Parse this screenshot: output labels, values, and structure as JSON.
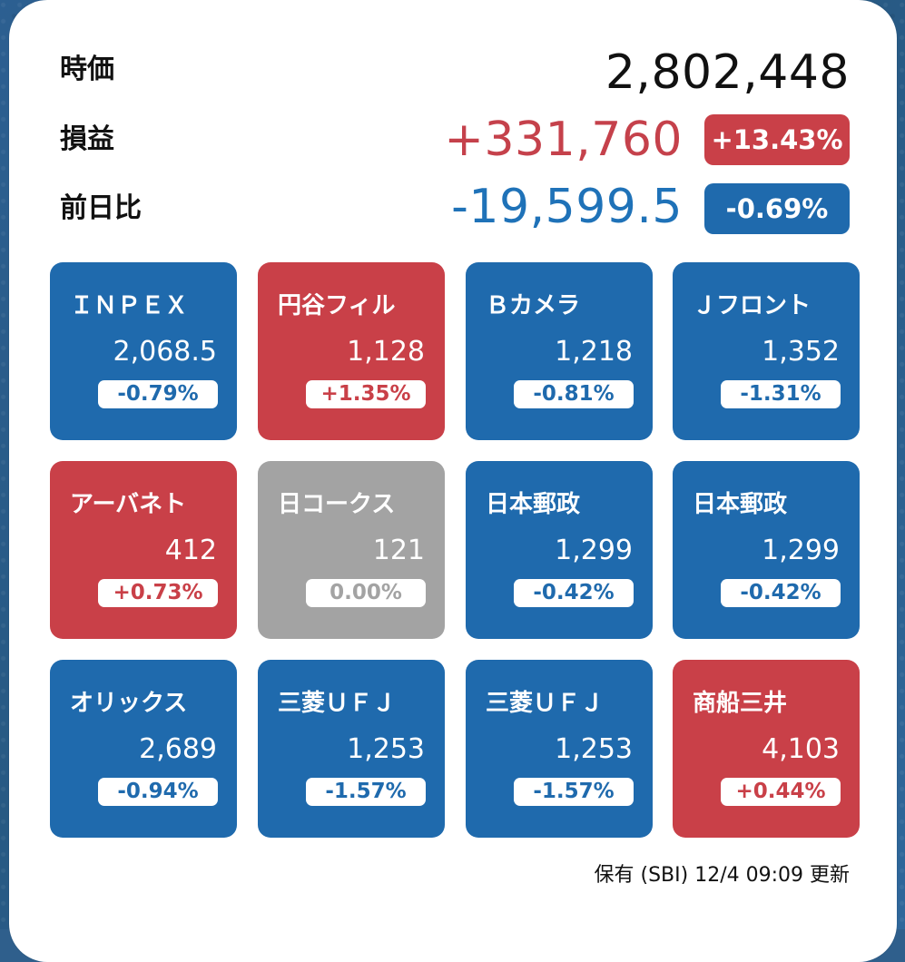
{
  "summary": {
    "market_label": "時価",
    "market_value": "2,802,448",
    "gain_label": "損益",
    "gain_value": "+331,760",
    "gain_percent": "+13.43%",
    "day_label": "前日比",
    "day_value": "-19,599.5",
    "day_percent": "-0.69%"
  },
  "tiles": [
    {
      "name": "ＩＮＰＥＸ",
      "price": "2,068.5",
      "change": "-0.79%",
      "status": "down",
      "color": "#1f6aad"
    },
    {
      "name": "円谷フィル",
      "price": "1,128",
      "change": "+1.35%",
      "status": "up",
      "color": "#c94048"
    },
    {
      "name": "Ｂカメラ",
      "price": "1,218",
      "change": "-0.81%",
      "status": "down",
      "color": "#1f6aad"
    },
    {
      "name": "Ｊフロント",
      "price": "1,352",
      "change": "-1.31%",
      "status": "down",
      "color": "#1f6aad"
    },
    {
      "name": "アーバネト",
      "price": "412",
      "change": "+0.73%",
      "status": "up",
      "color": "#c94048"
    },
    {
      "name": "日コークス",
      "price": "121",
      "change": "0.00%",
      "status": "flat",
      "color": "#a3a3a3"
    },
    {
      "name": "日本郵政",
      "price": "1,299",
      "change": "-0.42%",
      "status": "down",
      "color": "#1f6aad"
    },
    {
      "name": "日本郵政",
      "price": "1,299",
      "change": "-0.42%",
      "status": "down",
      "color": "#1f6aad"
    },
    {
      "name": "オリックス",
      "price": "2,689",
      "change": "-0.94%",
      "status": "down",
      "color": "#1f6aad"
    },
    {
      "name": "三菱ＵＦＪ",
      "price": "1,253",
      "change": "-1.57%",
      "status": "down",
      "color": "#1f6aad"
    },
    {
      "name": "三菱ＵＦＪ",
      "price": "1,253",
      "change": "-1.57%",
      "status": "down",
      "color": "#1f6aad"
    },
    {
      "name": "商船三井",
      "price": "4,103",
      "change": "+0.44%",
      "status": "up",
      "color": "#c94048"
    }
  ],
  "footer": {
    "updated_text": "保有 (SBI) 12/4 09:09 更新"
  },
  "colors": {
    "up": "#c94048",
    "down": "#1f6aad",
    "flat": "#a3a3a3",
    "background": "#2f5f8c",
    "widget": "#ffffff"
  }
}
